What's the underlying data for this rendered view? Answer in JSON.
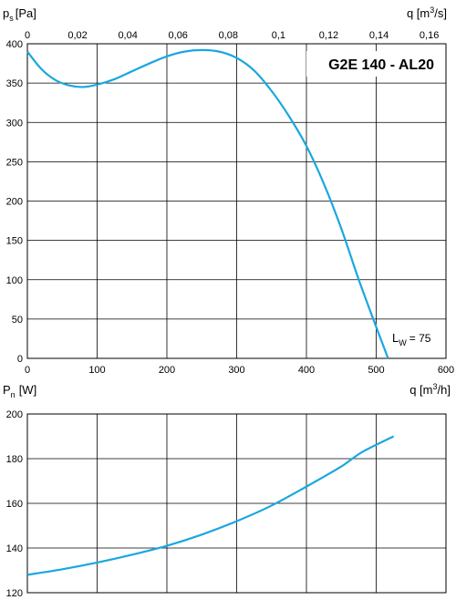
{
  "chart_data": [
    {
      "type": "line",
      "title": "G2E 140 - AL20",
      "ylabel_symbol": "p",
      "ylabel_subscript": "s",
      "ylabel_unit": "[Pa]",
      "xlabel_top_prefix": "q [m",
      "xlabel_top_sup": "3",
      "xlabel_top_suffix": "/s]",
      "xlabel_bottom_prefix": "q [m",
      "xlabel_bottom_sup": "3",
      "xlabel_bottom_suffix": "/h]",
      "annotation_symbol": "L",
      "annotation_subscript": "W",
      "annotation_value": "= 75",
      "xlim": [
        0,
        600
      ],
      "ylim": [
        0,
        400
      ],
      "x_ticks": [
        "0",
        "100",
        "200",
        "300",
        "400",
        "500",
        "600"
      ],
      "x_top_ticks": [
        "0",
        "0,02",
        "0,04",
        "0,06",
        "0,08",
        "0,1",
        "0,12",
        "0,14",
        "0,16"
      ],
      "y_ticks": [
        "0",
        "50",
        "100",
        "150",
        "200",
        "250",
        "300",
        "350",
        "400"
      ],
      "grid": true,
      "series": [
        {
          "color": "#1aa7e0",
          "x": [
            0,
            20,
            40,
            60,
            80,
            100,
            125,
            150,
            175,
            200,
            225,
            250,
            275,
            300,
            325,
            350,
            375,
            400,
            425,
            450,
            475,
            500,
            517
          ],
          "y": [
            390,
            368,
            354,
            347,
            345,
            348,
            355,
            365,
            375,
            384,
            390,
            392,
            390,
            382,
            366,
            340,
            308,
            270,
            222,
            165,
            100,
            40,
            0
          ]
        }
      ]
    },
    {
      "type": "line",
      "ylabel_symbol": "P",
      "ylabel_subscript": "n",
      "ylabel_unit": "[W]",
      "xlim": [
        0,
        600
      ],
      "ylim": [
        120,
        200
      ],
      "y_ticks": [
        "120",
        "140",
        "160",
        "180",
        "200"
      ],
      "grid": true,
      "series": [
        {
          "color": "#1aa7e0",
          "x": [
            0,
            50,
            100,
            150,
            200,
            250,
            300,
            350,
            400,
            450,
            480,
            525
          ],
          "y": [
            128,
            130.5,
            133.5,
            137,
            141,
            146,
            152,
            159,
            167.5,
            176.5,
            183,
            190
          ]
        }
      ]
    }
  ]
}
